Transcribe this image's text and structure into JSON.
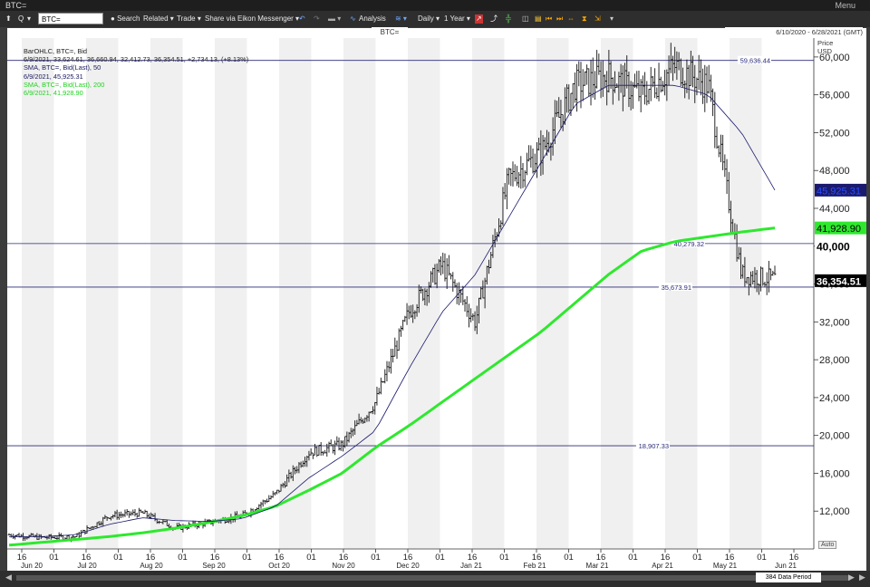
{
  "window": {
    "title": "BTC=",
    "menu_label": "Menu"
  },
  "toolbar": {
    "ric_value": "BTC=",
    "search": "Search",
    "related": "Related",
    "trade": "Trade",
    "share": "Share via Eikon Messenger",
    "analysis": "Analysis",
    "interval": "Daily",
    "range": "1 Year"
  },
  "chart_header": {
    "ric": "BTC=",
    "date_range": "6/10/2020 - 6/28/2021 (GMT)"
  },
  "legend": {
    "line1": "BarOHLC, BTC=, Bid",
    "line2": "6/9/2021, 33,624.61, 36,660.94, 32,412.73, 36,354.51, +2,734.13, (+8.13%)",
    "line3": "SMA, BTC=, Bid(Last), 50",
    "line4": "6/9/2021, 45,925.31",
    "line5": "SMA, BTC=, Bid(Last), 200",
    "line6": "6/9/2021, 41,928.90"
  },
  "axis": {
    "price_title_1": "Price",
    "price_title_2": "USD",
    "auto_label": "Auto",
    "data_period": "384 Data Period"
  },
  "colors": {
    "sma50": "#1a1a6e",
    "sma200": "#2ee82e",
    "bars": "#111111",
    "hline": "#2a2a7a",
    "band": "#f0f0f0"
  },
  "chart_data": {
    "type": "ohlc",
    "ylim": [
      8000,
      62000
    ],
    "yticks": [
      "12,000",
      "16,000",
      "20,000",
      "24,000",
      "28,000",
      "32,000",
      "36,000",
      "40,000",
      "44,000",
      "48,000",
      "52,000",
      "56,000",
      "60,000"
    ],
    "ytick_values": [
      12000,
      16000,
      20000,
      24000,
      28000,
      32000,
      36000,
      40000,
      44000,
      48000,
      52000,
      56000,
      60000
    ],
    "month_labels": [
      "Jun 20",
      "Jul 20",
      "Aug 20",
      "Sep 20",
      "Oct 20",
      "Nov 20",
      "Dec 20",
      "Jan 21",
      "Feb 21",
      "Mar 21",
      "Apr 21",
      "May 21",
      "Jun 21"
    ],
    "day_ticks": [
      "16",
      "01",
      "16",
      "01",
      "16",
      "01",
      "16",
      "01",
      "16",
      "01",
      "16",
      "01",
      "16",
      "01",
      "16",
      "01",
      "16",
      "01",
      "16",
      "01",
      "16",
      "01",
      "16",
      "01",
      "16"
    ],
    "horizontal_lines": [
      {
        "label": "59,636.44",
        "value": 59636.44
      },
      {
        "label": "40,279.32",
        "value": 40279.32
      },
      {
        "label": "35,673.91",
        "value": 35673.91
      },
      {
        "label": "18,907.33",
        "value": 18907.33
      }
    ],
    "price_tags": [
      {
        "label": "45,925.31",
        "value": 45925.31,
        "style": "sma50"
      },
      {
        "label": "41,928.90",
        "value": 41928.9,
        "style": "sma200"
      },
      {
        "label": "40,000",
        "value": 40000,
        "style": "bold"
      },
      {
        "label": "36,354.51",
        "value": 36354.51,
        "style": "last"
      }
    ],
    "close_series_monthly": [
      9500,
      9200,
      9300,
      11500,
      11800,
      10200,
      10800,
      11500,
      13800,
      18200,
      19000,
      23500,
      33000,
      38000,
      32000,
      47000,
      50000,
      57000,
      58000,
      56000,
      59000,
      57000,
      37000,
      36500
    ],
    "sma50_monthly": [
      9300,
      9300,
      9500,
      10600,
      11300,
      11000,
      10900,
      11200,
      12500,
      15500,
      17800,
      20500,
      27000,
      33000,
      37000,
      43000,
      49000,
      55000,
      57000,
      57000,
      57000,
      56000,
      52000,
      45925
    ],
    "sma200_monthly": [
      8400,
      8700,
      9000,
      9300,
      9700,
      10200,
      10800,
      11500,
      12500,
      14200,
      16000,
      18700,
      21000,
      23500,
      26000,
      28500,
      31000,
      34000,
      37000,
      39500,
      40500,
      41000,
      41500,
      41929
    ]
  }
}
